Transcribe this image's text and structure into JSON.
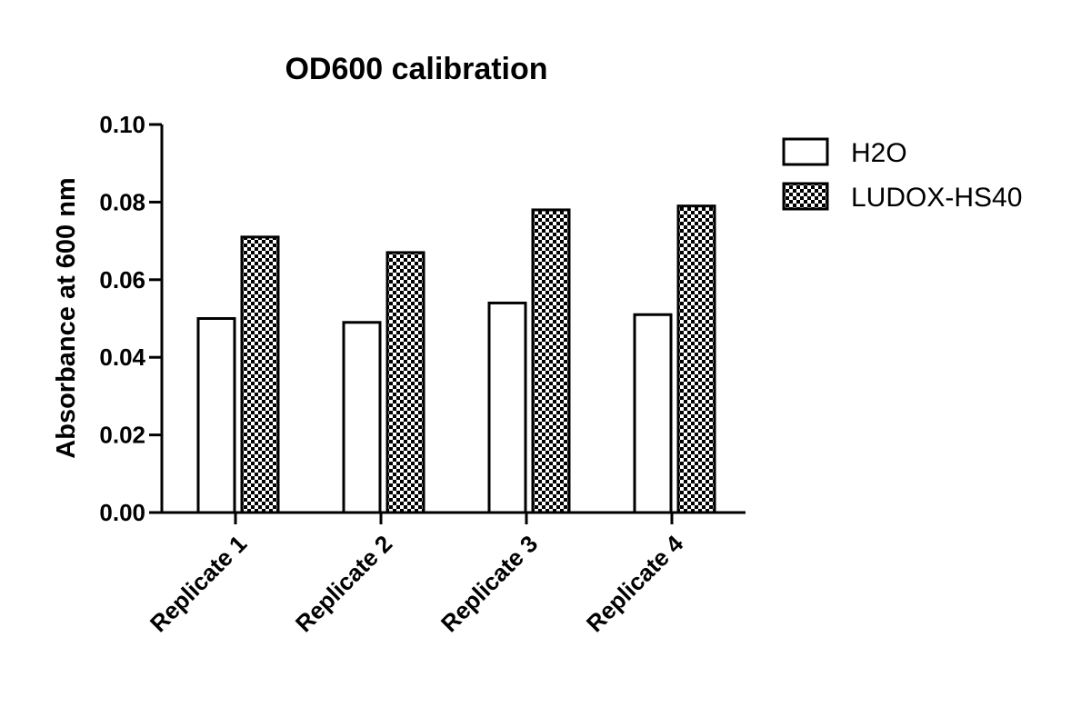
{
  "chart_data": {
    "type": "bar",
    "title": "OD600 calibration",
    "xlabel": "",
    "ylabel": "Absorbance at 600 nm",
    "ylim": [
      0,
      0.1
    ],
    "yticks": [
      "0.00",
      "0.02",
      "0.04",
      "0.06",
      "0.08",
      "0.10"
    ],
    "categories": [
      "Replicate 1",
      "Replicate 2",
      "Replicate 3",
      "Replicate 4"
    ],
    "series": [
      {
        "name": "H2O",
        "values": [
          0.05,
          0.049,
          0.054,
          0.051
        ],
        "fill": "white"
      },
      {
        "name": "LUDOX-HS40",
        "values": [
          0.071,
          0.067,
          0.078,
          0.079
        ],
        "fill": "checkerboard"
      }
    ],
    "grid": false,
    "legend_position": "top-right",
    "colors": {
      "stroke": "#000000",
      "background": "#ffffff"
    }
  }
}
